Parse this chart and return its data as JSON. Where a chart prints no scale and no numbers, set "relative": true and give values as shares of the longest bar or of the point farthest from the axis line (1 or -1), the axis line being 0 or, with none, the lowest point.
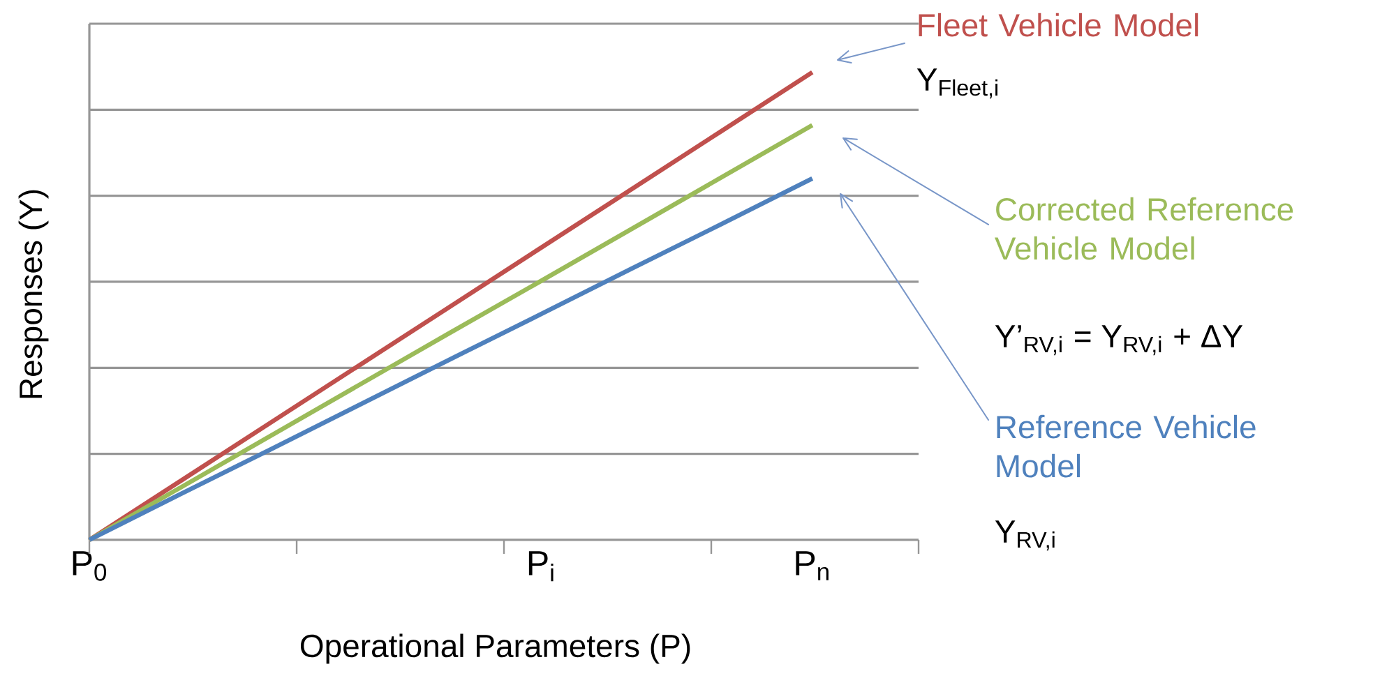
{
  "chart_data": {
    "type": "line",
    "relative": true,
    "xlabel": "Operational Parameters (P)",
    "ylabel": "Responses (Y)",
    "categories": [
      "P$_{0}$",
      null,
      null,
      null,
      null,
      "P$_{i}$",
      null,
      null,
      "P$_{n}$"
    ],
    "grid": "y",
    "tick_labels": "x",
    "legend": false,
    "marker": "none",
    "line_style": "solid",
    "series": [
      {
        "name": "Fleet Vehicle Model",
        "color": "#c0504d",
        "values": [
          0,
          0.125,
          0.25,
          0.375,
          0.5,
          0.625,
          0.75,
          0.875,
          1
        ]
      },
      {
        "name": "Corrected Reference Vehicle Model",
        "color": "#9bbb59",
        "values": [
          0,
          0.111,
          0.222,
          0.333,
          0.444,
          0.554,
          0.665,
          0.776,
          0.887
        ]
      },
      {
        "name": "Reference Vehicle Model",
        "color": "#4f81bd",
        "values": [
          0,
          0.097,
          0.193,
          0.29,
          0.387,
          0.483,
          0.58,
          0.676,
          0.773
        ]
      }
    ],
    "annotations": [
      "Y$_{Fleet,i}$",
      "Y’$_{RV,i}$ = Y$_{RV,i}$ + ΔY",
      "Y$_{RV,i}$"
    ]
  }
}
